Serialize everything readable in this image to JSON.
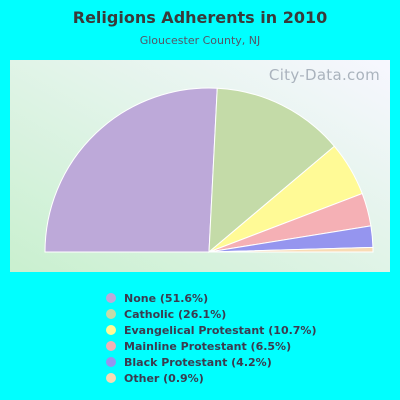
{
  "chart_data": {
    "type": "pie",
    "title": "Religions Adherents in 2010",
    "subtitle": "Gloucester County, NJ",
    "categories": [
      "None",
      "Catholic",
      "Evangelical Protestant",
      "Mainline Protestant",
      "Black Protestant",
      "Other"
    ],
    "values": [
      51.6,
      26.1,
      10.7,
      6.5,
      4.2,
      0.9
    ],
    "legend_labels": [
      "None (51.6%)",
      "Catholic (26.1%)",
      "Evangelical Protestant (10.7%)",
      "Mainline Protestant (6.5%)",
      "Black Protestant (4.2%)",
      "Other (0.9%)"
    ],
    "colors": [
      "#bda9d9",
      "#c4dba8",
      "#fffa96",
      "#f5b0b5",
      "#9595ef",
      "#f9dbb4"
    ],
    "legend_position": "bottom"
  },
  "watermark": "City-Data.com"
}
